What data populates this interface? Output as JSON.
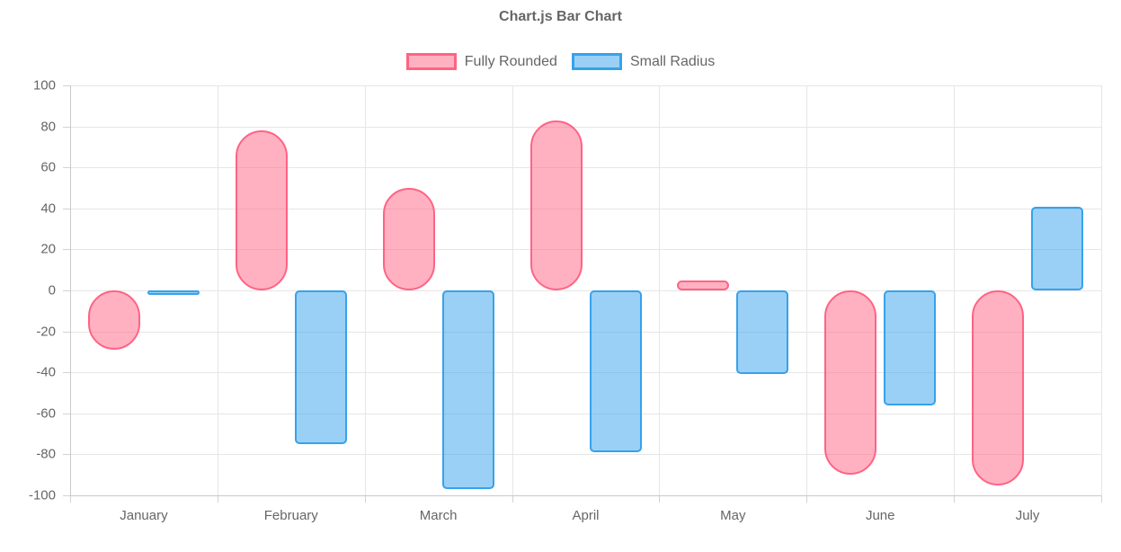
{
  "chart_data": {
    "type": "bar",
    "title": "Chart.js Bar Chart",
    "categories": [
      "January",
      "February",
      "March",
      "April",
      "May",
      "June",
      "July"
    ],
    "series": [
      {
        "name": "Fully Rounded",
        "values": [
          -29,
          78,
          50,
          83,
          5,
          -90,
          -95
        ],
        "border_color": "#ff6384",
        "fill_color": "rgba(255, 99, 132, 0.5)",
        "border_radius": "full"
      },
      {
        "name": "Small Radius",
        "values": [
          -2,
          -75,
          -97,
          -79,
          -41,
          -56,
          41
        ],
        "border_color": "#36a2eb",
        "fill_color": "rgba(54, 162, 235, 0.5)",
        "border_radius": 5
      }
    ],
    "y_ticks": [
      100,
      80,
      60,
      40,
      20,
      0,
      -20,
      -40,
      -60,
      -80,
      -100
    ],
    "ylim": [
      -100,
      100
    ],
    "grid": true,
    "legend_position": "top",
    "xlabel": "",
    "ylabel": ""
  },
  "colors": {
    "text": "#666666",
    "grid": "#e6e6e6",
    "axis_border": "#c9c9c9",
    "tick": "#d2d2d2",
    "background": "#ffffff"
  }
}
